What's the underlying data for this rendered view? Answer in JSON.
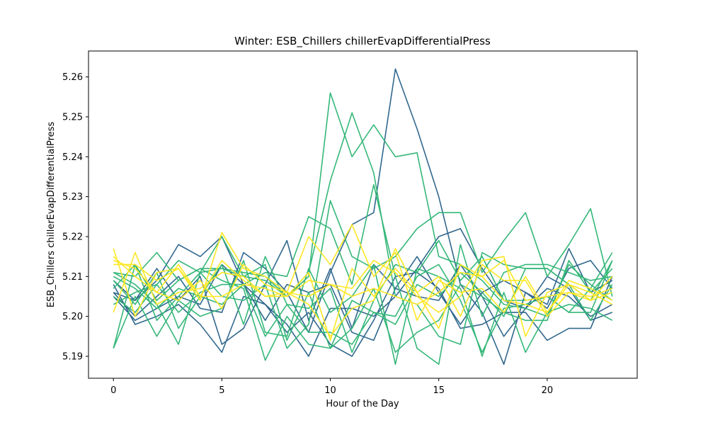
{
  "chart_data": {
    "type": "line",
    "title": "Winter: ESB_Chillers chillerEvapDifferentialPress",
    "xlabel": "Hour of the Day",
    "ylabel": "ESB_Chillers chillerEvapDifferentialPress",
    "xlim": [
      -1.15,
      24.15
    ],
    "ylim": [
      5.1845,
      5.2665
    ],
    "xticks": [
      0,
      5,
      10,
      15,
      20
    ],
    "yticks": [
      5.19,
      5.2,
      5.21,
      5.22,
      5.23,
      5.24,
      5.25,
      5.26
    ],
    "ytick_labels": [
      "5.19",
      "5.20",
      "5.21",
      "5.22",
      "5.23",
      "5.24",
      "5.25",
      "5.26"
    ],
    "grid": false,
    "x": [
      0,
      1,
      2,
      3,
      4,
      5,
      6,
      7,
      8,
      9,
      10,
      11,
      12,
      13,
      14,
      15,
      16,
      17,
      18,
      19,
      20,
      21,
      22,
      23
    ],
    "series": [
      {
        "color": "#31688e",
        "values": [
          5.206,
          5.2,
          5.205,
          5.21,
          5.202,
          5.201,
          5.216,
          5.212,
          5.206,
          5.196,
          5.211,
          5.223,
          5.226,
          5.262,
          5.247,
          5.23,
          5.208,
          5.201,
          5.188,
          5.206,
          5.203,
          5.217,
          5.206,
          5.209
        ]
      },
      {
        "color": "#31688e",
        "values": [
          5.206,
          5.204,
          5.212,
          5.204,
          5.21,
          5.193,
          5.197,
          5.208,
          5.219,
          5.199,
          5.212,
          5.197,
          5.213,
          5.207,
          5.215,
          5.206,
          5.198,
          5.206,
          5.209,
          5.206,
          5.202,
          5.212,
          5.214,
          5.207
        ]
      },
      {
        "color": "#31688e",
        "values": [
          5.208,
          5.198,
          5.2,
          5.203,
          5.198,
          5.191,
          5.205,
          5.203,
          5.196,
          5.201,
          5.193,
          5.19,
          5.199,
          5.21,
          5.211,
          5.207,
          5.197,
          5.198,
          5.201,
          5.201,
          5.194,
          5.197,
          5.197,
          5.21
        ]
      },
      {
        "color": "#31688e",
        "values": [
          5.209,
          5.204,
          5.209,
          5.218,
          5.215,
          5.22,
          5.208,
          5.203,
          5.198,
          5.19,
          5.202,
          5.202,
          5.2,
          5.205,
          5.212,
          5.22,
          5.222,
          5.212,
          5.204,
          5.202,
          5.207,
          5.205,
          5.2,
          5.203
        ]
      },
      {
        "color": "#31688e",
        "values": [
          5.205,
          5.199,
          5.202,
          5.205,
          5.203,
          5.213,
          5.208,
          5.199,
          5.208,
          5.206,
          5.208,
          5.196,
          5.194,
          5.207,
          5.205,
          5.204,
          5.213,
          5.205,
          5.195,
          5.202,
          5.21,
          5.207,
          5.199,
          5.201
        ]
      },
      {
        "color": "#35b779",
        "values": [
          5.207,
          5.213,
          5.204,
          5.209,
          5.212,
          5.212,
          5.21,
          5.209,
          5.205,
          5.21,
          5.256,
          5.24,
          5.248,
          5.24,
          5.241,
          5.215,
          5.213,
          5.209,
          5.203,
          5.202,
          5.2,
          5.213,
          5.208,
          5.204
        ]
      },
      {
        "color": "#35b779",
        "values": [
          5.203,
          5.206,
          5.208,
          5.214,
          5.211,
          5.212,
          5.211,
          5.21,
          5.205,
          5.211,
          5.234,
          5.251,
          5.236,
          5.205,
          5.203,
          5.195,
          5.193,
          5.216,
          5.213,
          5.212,
          5.212,
          5.208,
          5.204,
          5.214
        ]
      },
      {
        "color": "#35b779",
        "values": [
          5.21,
          5.207,
          5.202,
          5.207,
          5.205,
          5.203,
          5.208,
          5.211,
          5.21,
          5.225,
          5.222,
          5.208,
          5.233,
          5.21,
          5.192,
          5.188,
          5.218,
          5.2,
          5.211,
          5.213,
          5.213,
          5.211,
          5.209,
          5.21
        ]
      },
      {
        "color": "#35b779",
        "values": [
          5.192,
          5.213,
          5.199,
          5.205,
          5.211,
          5.205,
          5.204,
          5.208,
          5.192,
          5.198,
          5.229,
          5.215,
          5.212,
          5.215,
          5.222,
          5.226,
          5.226,
          5.211,
          5.219,
          5.226,
          5.21,
          5.218,
          5.227,
          5.205
        ]
      },
      {
        "color": "#35b779",
        "values": [
          5.211,
          5.208,
          5.203,
          5.193,
          5.211,
          5.22,
          5.21,
          5.213,
          5.194,
          5.206,
          5.192,
          5.204,
          5.201,
          5.2,
          5.21,
          5.213,
          5.204,
          5.191,
          5.202,
          5.203,
          5.205,
          5.201,
          5.201,
          5.214
        ]
      },
      {
        "color": "#35b779",
        "values": [
          5.205,
          5.201,
          5.208,
          5.201,
          5.206,
          5.208,
          5.208,
          5.195,
          5.203,
          5.196,
          5.196,
          5.193,
          5.201,
          5.198,
          5.208,
          5.205,
          5.211,
          5.206,
          5.2,
          5.212,
          5.212,
          5.208,
          5.199,
          5.208
        ]
      },
      {
        "color": "#35b779",
        "values": [
          5.211,
          5.21,
          5.216,
          5.209,
          5.212,
          5.209,
          5.207,
          5.189,
          5.2,
          5.193,
          5.192,
          5.197,
          5.207,
          5.191,
          5.196,
          5.199,
          5.208,
          5.205,
          5.201,
          5.199,
          5.199,
          5.214,
          5.206,
          5.212
        ]
      },
      {
        "color": "#35b779",
        "values": [
          5.192,
          5.205,
          5.195,
          5.204,
          5.2,
          5.202,
          5.214,
          5.196,
          5.195,
          5.212,
          5.201,
          5.205,
          5.213,
          5.188,
          5.212,
          5.21,
          5.207,
          5.19,
          5.206,
          5.191,
          5.201,
          5.203,
          5.202,
          5.199
        ]
      },
      {
        "color": "#35b779",
        "values": [
          5.209,
          5.203,
          5.211,
          5.197,
          5.205,
          5.213,
          5.198,
          5.215,
          5.203,
          5.202,
          5.207,
          5.191,
          5.204,
          5.213,
          5.211,
          5.219,
          5.209,
          5.215,
          5.204,
          5.204,
          5.205,
          5.201,
          5.207,
          5.216
        ]
      },
      {
        "color": "#fde725",
        "values": [
          5.217,
          5.2,
          5.211,
          5.212,
          5.204,
          5.221,
          5.212,
          5.21,
          5.206,
          5.22,
          5.213,
          5.223,
          5.21,
          5.216,
          5.199,
          5.209,
          5.206,
          5.207,
          5.201,
          5.21,
          5.201,
          5.208,
          5.204,
          5.21
        ]
      },
      {
        "color": "#fde725",
        "values": [
          5.201,
          5.216,
          5.203,
          5.206,
          5.207,
          5.211,
          5.21,
          5.205,
          5.206,
          5.205,
          5.208,
          5.207,
          5.214,
          5.211,
          5.205,
          5.201,
          5.205,
          5.214,
          5.215,
          5.195,
          5.206,
          5.208,
          5.206,
          5.203
        ]
      },
      {
        "color": "#fde725",
        "values": [
          5.213,
          5.213,
          5.209,
          5.212,
          5.205,
          5.214,
          5.209,
          5.205,
          5.205,
          5.211,
          5.194,
          5.212,
          5.205,
          5.212,
          5.206,
          5.21,
          5.2,
          5.213,
          5.209,
          5.209,
          5.2,
          5.206,
          5.204,
          5.206
        ]
      },
      {
        "color": "#fde725",
        "values": [
          5.214,
          5.212,
          5.206,
          5.204,
          5.209,
          5.202,
          5.213,
          5.208,
          5.206,
          5.203,
          5.195,
          5.202,
          5.204,
          5.217,
          5.206,
          5.197,
          5.213,
          5.21,
          5.204,
          5.203,
          5.201,
          5.209,
          5.207,
          5.204
        ]
      },
      {
        "color": "#fde725",
        "values": [
          5.215,
          5.21,
          5.206,
          5.213,
          5.205,
          5.205,
          5.208,
          5.207,
          5.205,
          5.209,
          5.208,
          5.205,
          5.207,
          5.205,
          5.203,
          5.206,
          5.211,
          5.21,
          5.214,
          5.204,
          5.205,
          5.206,
          5.205,
          5.207
        ]
      }
    ]
  }
}
